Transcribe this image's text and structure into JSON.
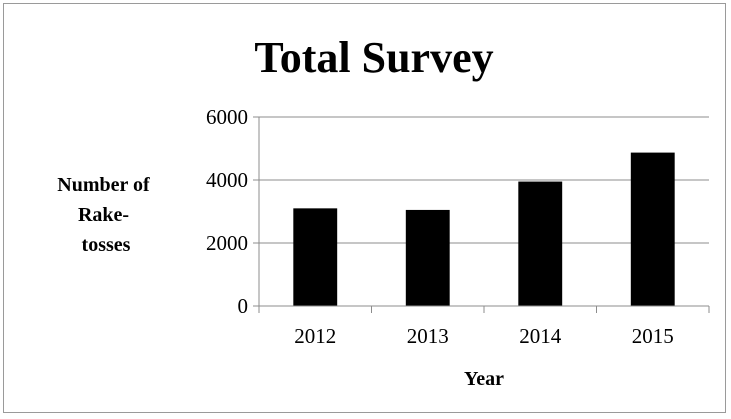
{
  "chart_data": {
    "type": "bar",
    "title": "Total Survey",
    "categories": [
      "2012",
      "2013",
      "2014",
      "2015"
    ],
    "values": [
      3100,
      3050,
      3950,
      4870
    ],
    "xlabel": "Year",
    "ylabel_lines": [
      "Number of",
      "Rake-",
      "tosses"
    ],
    "ylim": [
      0,
      6000
    ],
    "yticks": [
      0,
      2000,
      4000,
      6000
    ],
    "grid": true,
    "legend": "none",
    "bar_color": "#000000",
    "grid_color": "#8c8c8c"
  }
}
